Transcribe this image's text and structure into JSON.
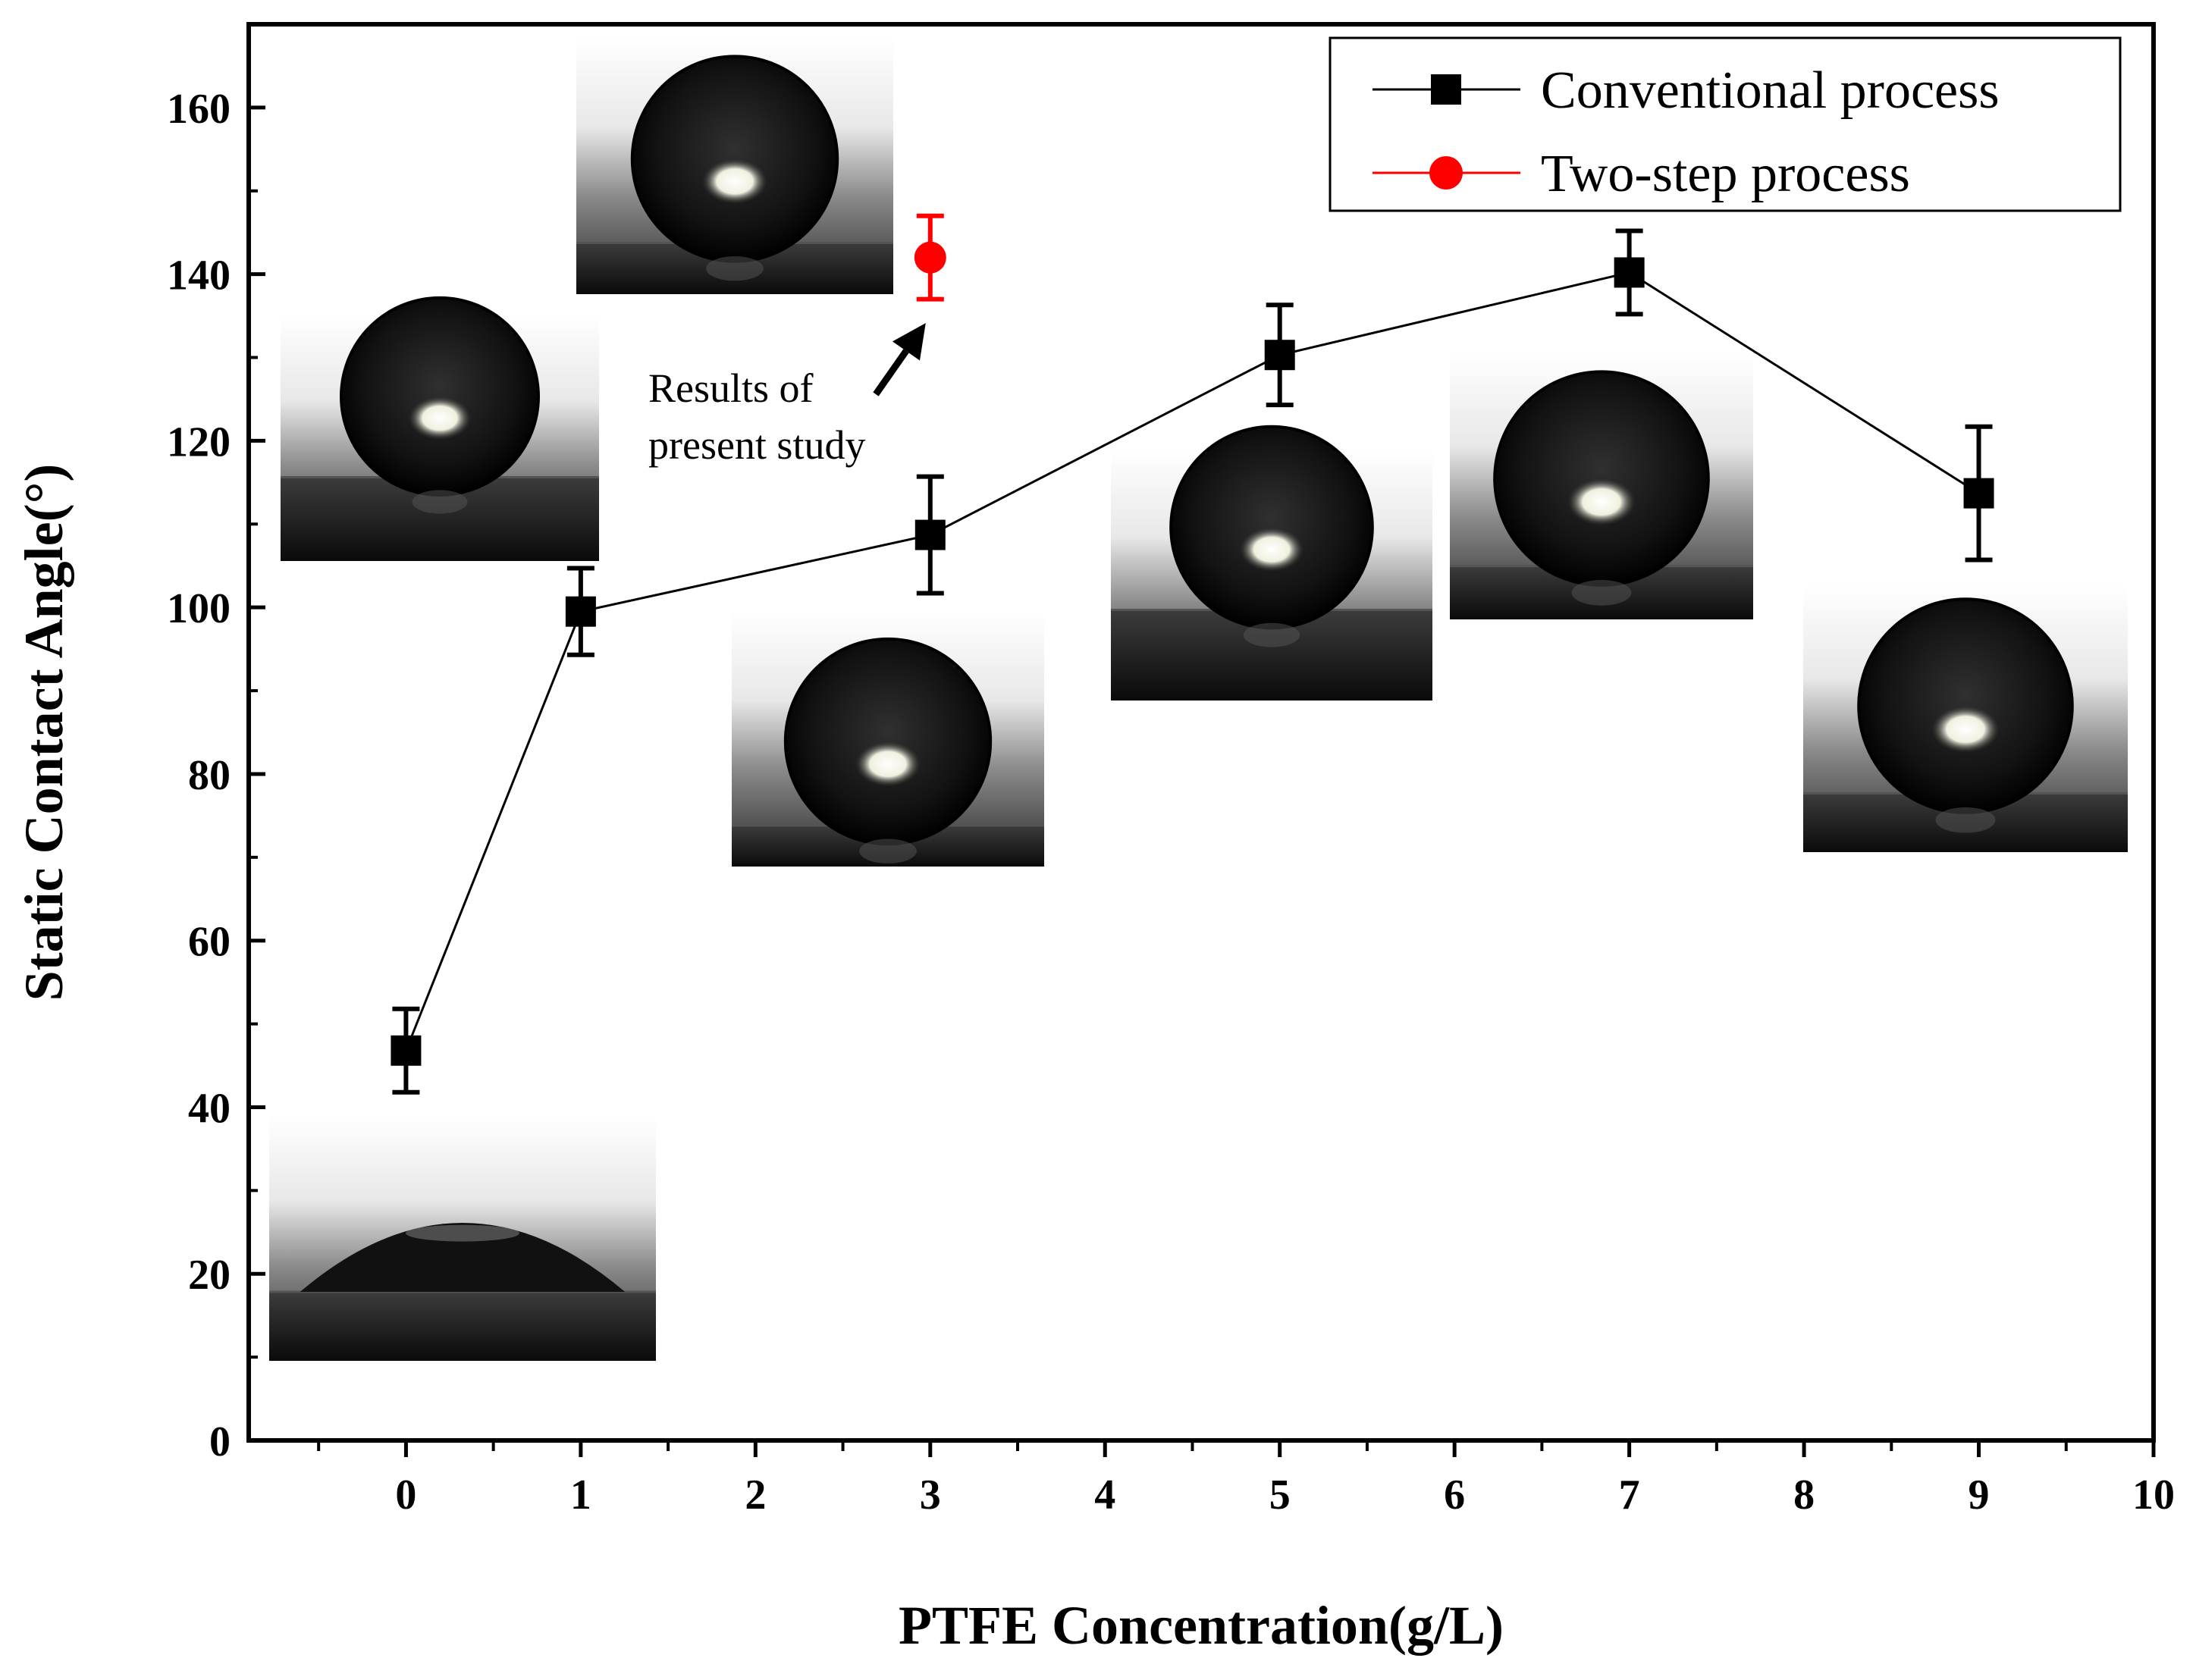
{
  "chart_data": {
    "type": "line",
    "title": "",
    "xlabel": "PTFE Concentration(g/L)",
    "ylabel": "Static Contact Angle(°)",
    "xlim": [
      -0.9,
      10
    ],
    "ylim": [
      0,
      170
    ],
    "x_ticks": [
      0,
      1,
      2,
      3,
      4,
      5,
      6,
      7,
      8,
      9,
      10
    ],
    "y_ticks": [
      0,
      20,
      40,
      60,
      80,
      100,
      120,
      140,
      160
    ],
    "x_minor_step": 0.5,
    "y_minor_step": 10,
    "legend_position": "top-right",
    "series": [
      {
        "name": "Conventional process",
        "color": "#000000",
        "marker": "square",
        "line": true,
        "x": [
          0,
          1,
          3,
          5,
          7,
          9
        ],
        "y": [
          46.8,
          99.5,
          108.7,
          130.3,
          140.2,
          113.7
        ],
        "err": [
          5.0,
          5.2,
          7.0,
          6.0,
          5.0,
          8.0
        ]
      },
      {
        "name": "Two-step process",
        "color": "#ff0000",
        "marker": "circle",
        "line": false,
        "x": [
          3
        ],
        "y": [
          142.0
        ],
        "err": [
          5.0
        ]
      }
    ],
    "annotation": {
      "lines": [
        "Results of",
        "present study"
      ],
      "points_to": {
        "x": 3,
        "y": 134.5
      }
    },
    "inset_photos": [
      {
        "name": "droplet-photo-0gL",
        "droplet": "flat-lens"
      },
      {
        "name": "droplet-photo-1gL",
        "droplet": "sphere"
      },
      {
        "name": "droplet-photo-3gL",
        "droplet": "sphere"
      },
      {
        "name": "droplet-photo-two-step",
        "droplet": "sphere"
      },
      {
        "name": "droplet-photo-5gL",
        "droplet": "sphere"
      },
      {
        "name": "droplet-photo-7gL",
        "droplet": "sphere"
      },
      {
        "name": "droplet-photo-9gL",
        "droplet": "sphere"
      }
    ]
  }
}
